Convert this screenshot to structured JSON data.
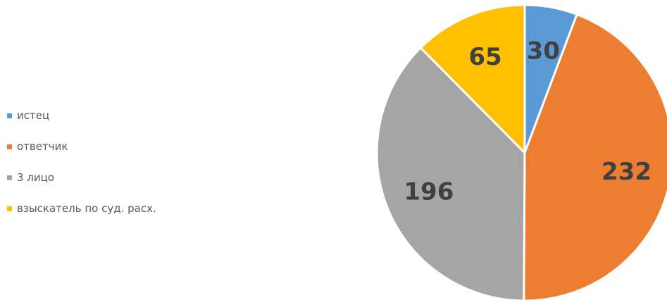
{
  "chart_data": {
    "type": "pie",
    "title": "",
    "categories": [
      "истец",
      "ответчик",
      "3 лицо",
      "взыскатель по суд. расх."
    ],
    "values": [
      30,
      232,
      196,
      65
    ],
    "colors": [
      "#5b9bd5",
      "#ed7d31",
      "#a5a5a5",
      "#ffc000"
    ],
    "data_labels": [
      "30",
      "232",
      "196",
      "65"
    ],
    "legend_position": "left",
    "start_angle": "12 o'clock",
    "direction": "clockwise"
  }
}
